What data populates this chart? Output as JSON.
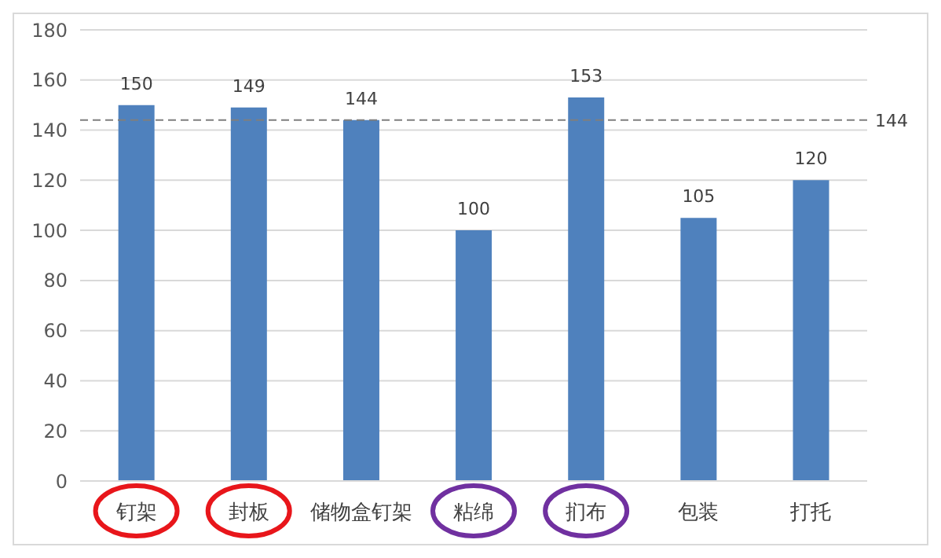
{
  "chart_data": {
    "type": "bar",
    "categories": [
      "钉架",
      "封板",
      "储物盒钉架",
      "粘绵",
      "扪布",
      "包装",
      "打托"
    ],
    "values": [
      150,
      149,
      144,
      100,
      153,
      105,
      120
    ],
    "color": "#4f81bd",
    "ylim": [
      0,
      180
    ],
    "yticks": [
      0,
      20,
      40,
      60,
      80,
      100,
      120,
      140,
      160,
      180
    ],
    "grid": "y",
    "data_labels": true,
    "ref_lines": [
      {
        "axis": "y",
        "value": 144,
        "label": "144",
        "color": "#7f7f7f",
        "line_style": "dashed"
      }
    ]
  }
}
